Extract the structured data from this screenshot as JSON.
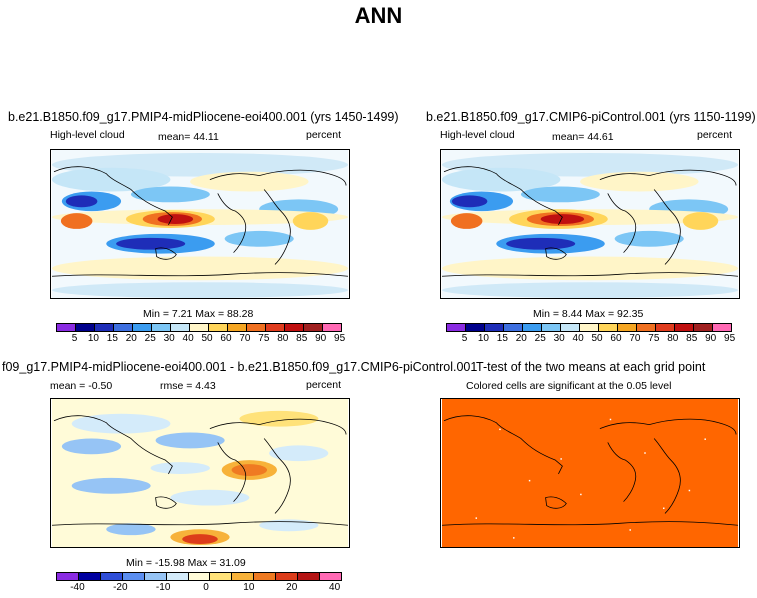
{
  "main_title": "ANN",
  "panels": [
    {
      "title": "b.e21.B1850.f09_g17.PMIP4-midPliocene-eoi400.001 (yrs 1450-1499)",
      "left_label": "High-level cloud",
      "mean_text": "mean=   44.11",
      "units": "percent",
      "minmax": "Min =    7.21  Max =   88.28"
    },
    {
      "title": "b.e21.B1850.f09_g17.CMIP6-piControl.001 (yrs 1150-1199)",
      "left_label": "High-level cloud",
      "mean_text": "mean=   44.61",
      "units": "percent",
      "minmax": "Min =    8.44  Max =   92.35"
    },
    {
      "title": "f09_g17.PMIP4-midPliocene-eoi400.001 - b.e21.B1850.f09_g17.CMIP6-piControl.001",
      "mean_text": "mean =  -0.50",
      "rmse_text": "rmse =    4.43",
      "units": "percent",
      "minmax": "Min = -15.98  Max =   31.09"
    },
    {
      "title": "T-test of the two means at each grid point",
      "subtitle": "Colored cells are significant at the 0.05 level"
    }
  ],
  "colors": {
    "abs_scale": [
      "#8a2be2",
      "#00008b",
      "#1e2db8",
      "#3d6fe0",
      "#3b9cf0",
      "#7cc6f5",
      "#c5e6f7",
      "#fff5c8",
      "#ffd55a",
      "#f5a623",
      "#f07020",
      "#e03c1e",
      "#c01010",
      "#a02020",
      "#ff69b4"
    ],
    "diff_scale": [
      "#8a2be2",
      "#0000a0",
      "#2f4ed8",
      "#5b8ef0",
      "#96c4f5",
      "#d4ebfa",
      "#fffbd8",
      "#ffe27a",
      "#f7b23a",
      "#ef7a22",
      "#dc3c1a",
      "#b41414",
      "#ff69b4"
    ],
    "ttest": "#ff6600"
  },
  "chart_data": [
    {
      "type": "heatmap",
      "title": "b.e21.B1850.f09_g17.PMIP4-midPliocene-eoi400.001 (yrs 1450-1499)",
      "variable": "High-level cloud",
      "units": "percent",
      "mean": 44.11,
      "min": 7.21,
      "max": 88.28,
      "colorbar_ticks": [
        "5",
        "10",
        "15",
        "20",
        "25",
        "30",
        "40",
        "50",
        "60",
        "70",
        "75",
        "80",
        "85",
        "90",
        "95"
      ]
    },
    {
      "type": "heatmap",
      "title": "b.e21.B1850.f09_g17.CMIP6-piControl.001 (yrs 1150-1199)",
      "variable": "High-level cloud",
      "units": "percent",
      "mean": 44.61,
      "min": 8.44,
      "max": 92.35,
      "colorbar_ticks": [
        "5",
        "10",
        "15",
        "20",
        "25",
        "30",
        "40",
        "50",
        "60",
        "70",
        "75",
        "80",
        "85",
        "90",
        "95"
      ]
    },
    {
      "type": "heatmap",
      "title": "f09_g17.PMIP4-midPliocene-eoi400.001 - b.e21.B1850.f09_g17.CMIP6-piControl.001",
      "units": "percent",
      "mean": -0.5,
      "rmse": 4.43,
      "min": -15.98,
      "max": 31.09,
      "colorbar_ticks": [
        "-40",
        "-20",
        "-10",
        "0",
        "10",
        "20",
        "40"
      ]
    },
    {
      "type": "heatmap",
      "title": "T-test of the two means at each grid point",
      "subtitle": "Colored cells are significant at the 0.05 level"
    }
  ]
}
